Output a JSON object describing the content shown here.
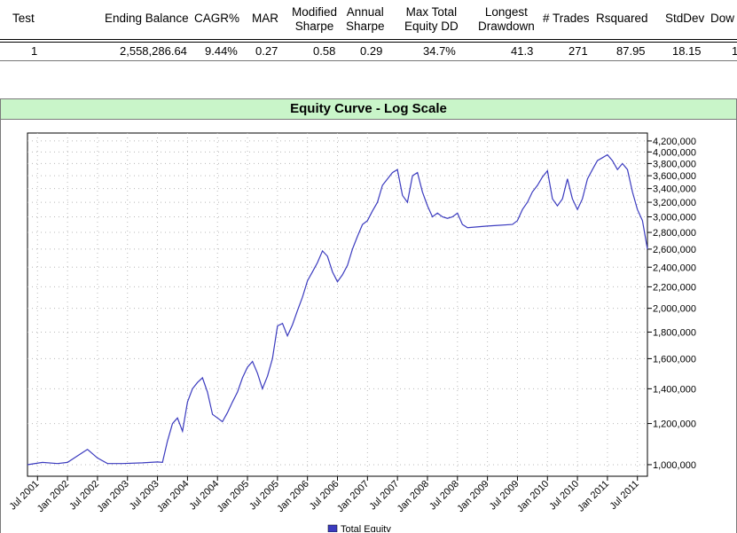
{
  "table": {
    "headers": [
      "Test",
      "Ending Balance",
      "CAGR%",
      "MAR",
      "Modified\nSharpe",
      "Annual\nSharpe",
      "Max Total\nEquity DD",
      "Longest\nDrawdown",
      "# Trades",
      "Rsquared",
      "StdDev",
      "Dow"
    ],
    "row": [
      "1",
      "2,558,286.64",
      "9.44%",
      "0.27",
      "0.58",
      "0.29",
      "34.7%",
      "41.3",
      "271",
      "87.95",
      "18.15",
      "1"
    ]
  },
  "chart_data": {
    "type": "line",
    "title": "Equity Curve - Log Scale",
    "xlabel": "",
    "ylabel": "",
    "yscale": "log",
    "ylim": [
      950000,
      4350000
    ],
    "xlim": [
      "2001-05",
      "2011-09"
    ],
    "grid": true,
    "legend": "bottom",
    "series_color": "#3b3bbf",
    "y_ticks": [
      "1,000,000",
      "1,200,000",
      "1,400,000",
      "1,600,000",
      "1,800,000",
      "2,000,000",
      "2,200,000",
      "2,400,000",
      "2,600,000",
      "2,800,000",
      "3,000,000",
      "3,200,000",
      "3,400,000",
      "3,600,000",
      "3,800,000",
      "4,000,000",
      "4,200,000"
    ],
    "y_tick_values": [
      1000000,
      1200000,
      1400000,
      1600000,
      1800000,
      2000000,
      2200000,
      2400000,
      2600000,
      2800000,
      3000000,
      3200000,
      3400000,
      3600000,
      3800000,
      4000000,
      4200000
    ],
    "x_ticks": [
      "Jul 2001",
      "Jan 2002",
      "Jul 2002",
      "Jan 2003",
      "Jul 2003",
      "Jan 2004",
      "Jul 2004",
      "Jan 2005",
      "Jul 2005",
      "Jan 2006",
      "Jul 2006",
      "Jan 2007",
      "Jul 2007",
      "Jan 2008",
      "Jul 2008",
      "Jan 2009",
      "Jul 2009",
      "Jan 2010",
      "Jul 2010",
      "Jan 2011",
      "Jul 2011"
    ],
    "x_tick_values": [
      "2001-07",
      "2002-01",
      "2002-07",
      "2003-01",
      "2003-07",
      "2004-01",
      "2004-07",
      "2005-01",
      "2005-07",
      "2006-01",
      "2006-07",
      "2007-01",
      "2007-07",
      "2008-01",
      "2008-07",
      "2009-01",
      "2009-07",
      "2010-01",
      "2010-07",
      "2011-01",
      "2011-07"
    ],
    "series": [
      {
        "name": "Total Equity",
        "x": [
          "2001-05",
          "2001-08",
          "2001-11",
          "2002-01",
          "2002-03",
          "2002-05",
          "2002-07",
          "2002-09",
          "2002-12",
          "2003-04",
          "2003-07",
          "2003-08",
          "2003-09",
          "2003-10",
          "2003-11",
          "2003-12",
          "2004-01",
          "2004-02",
          "2004-03",
          "2004-04",
          "2004-05",
          "2004-06",
          "2004-07",
          "2004-08",
          "2004-09",
          "2004-10",
          "2004-11",
          "2004-12",
          "2005-01",
          "2005-02",
          "2005-03",
          "2005-04",
          "2005-05",
          "2005-06",
          "2005-07",
          "2005-08",
          "2005-09",
          "2005-10",
          "2005-11",
          "2005-12",
          "2006-01",
          "2006-02",
          "2006-03",
          "2006-04",
          "2006-05",
          "2006-06",
          "2006-07",
          "2006-08",
          "2006-09",
          "2006-10",
          "2006-11",
          "2006-12",
          "2007-01",
          "2007-02",
          "2007-03",
          "2007-04",
          "2007-05",
          "2007-06",
          "2007-07",
          "2007-08",
          "2007-09",
          "2007-10",
          "2007-11",
          "2007-12",
          "2008-01",
          "2008-02",
          "2008-03",
          "2008-04",
          "2008-05",
          "2008-06",
          "2008-07",
          "2008-08",
          "2008-09",
          "2009-01",
          "2009-06",
          "2009-07",
          "2009-08",
          "2009-09",
          "2009-10",
          "2009-11",
          "2009-12",
          "2010-01",
          "2010-02",
          "2010-03",
          "2010-04",
          "2010-05",
          "2010-06",
          "2010-07",
          "2010-08",
          "2010-09",
          "2010-10",
          "2010-11",
          "2010-12",
          "2011-01",
          "2011-02",
          "2011-03",
          "2011-04",
          "2011-05",
          "2011-06",
          "2011-07",
          "2011-08",
          "2011-09"
        ],
        "values": [
          1000000,
          1010000,
          1005000,
          1010000,
          1040000,
          1070000,
          1030000,
          1005000,
          1005000,
          1008000,
          1012000,
          1010000,
          1110000,
          1200000,
          1230000,
          1160000,
          1320000,
          1400000,
          1440000,
          1470000,
          1380000,
          1250000,
          1230000,
          1210000,
          1260000,
          1320000,
          1380000,
          1470000,
          1540000,
          1580000,
          1500000,
          1400000,
          1480000,
          1600000,
          1850000,
          1870000,
          1770000,
          1860000,
          1980000,
          2100000,
          2260000,
          2350000,
          2450000,
          2580000,
          2520000,
          2350000,
          2250000,
          2320000,
          2420000,
          2600000,
          2750000,
          2900000,
          2950000,
          3080000,
          3200000,
          3450000,
          3550000,
          3650000,
          3700000,
          3300000,
          3200000,
          3600000,
          3650000,
          3350000,
          3150000,
          3000000,
          3050000,
          3000000,
          2980000,
          3000000,
          3050000,
          2900000,
          2860000,
          2880000,
          2900000,
          2950000,
          3100000,
          3200000,
          3350000,
          3450000,
          3580000,
          3680000,
          3250000,
          3150000,
          3250000,
          3550000,
          3250000,
          3100000,
          3250000,
          3550000,
          3700000,
          3850000,
          3900000,
          3950000,
          3850000,
          3700000,
          3800000,
          3700000,
          3350000,
          3100000,
          2950000,
          2600000
        ]
      }
    ]
  }
}
